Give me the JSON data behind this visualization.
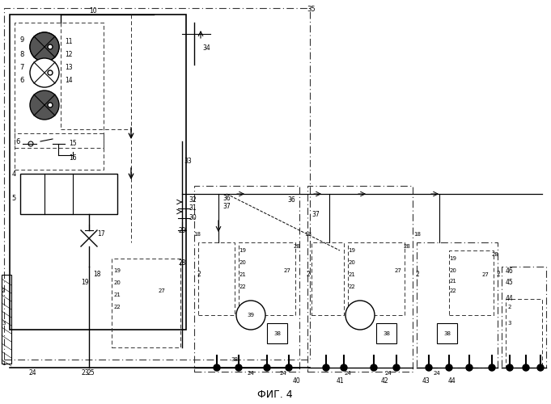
{
  "title": "ФИГ. 4",
  "bg_color": "#ffffff",
  "line_color": "#000000",
  "dashed_color": "#555555",
  "fig_width": 6.81,
  "fig_height": 5.0,
  "dpi": 100
}
